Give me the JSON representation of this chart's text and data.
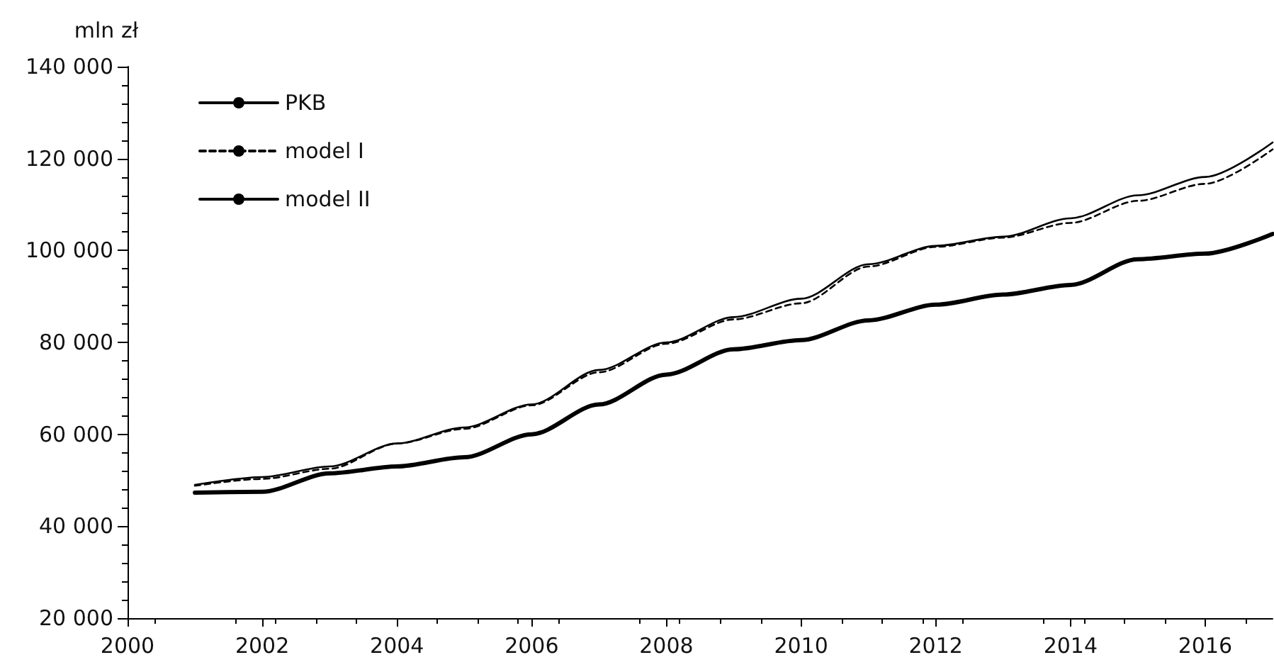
{
  "chart_data": {
    "type": "line",
    "ylabel": "mln zł",
    "x": [
      2001,
      2002,
      2003,
      2004,
      2005,
      2006,
      2007,
      2008,
      2009,
      2010,
      2011,
      2012,
      2013,
      2014,
      2015,
      2016,
      2017
    ],
    "series": [
      {
        "name": "PKB",
        "color": "#000000",
        "line_style": "solid",
        "values": [
          49000,
          50700,
          53000,
          58000,
          61500,
          66500,
          74000,
          80000,
          85500,
          89500,
          97000,
          101000,
          103000,
          107000,
          112000,
          116000,
          123500
        ]
      },
      {
        "name": "model I",
        "color": "#000000",
        "line_style": "dashed",
        "values": [
          48800,
          50300,
          52500,
          58000,
          61200,
          66300,
          73500,
          79700,
          85000,
          88500,
          96500,
          100800,
          102800,
          106000,
          110800,
          114500,
          122000
        ]
      },
      {
        "name": "model II",
        "color": "#000000",
        "line_style": "solid",
        "values": [
          47300,
          47500,
          51500,
          53000,
          55000,
          60000,
          66500,
          73000,
          78500,
          80500,
          84800,
          88200,
          90400,
          92500,
          98100,
          99300,
          103600
        ]
      }
    ],
    "xlim": [
      2000,
      2017
    ],
    "xticks": [
      2000,
      2002,
      2004,
      2006,
      2008,
      2010,
      2012,
      2014,
      2016
    ],
    "ylim": [
      20000,
      140000
    ],
    "yticks": [
      {
        "value": 20000,
        "label": "20 000"
      },
      {
        "value": 40000,
        "label": "40 000"
      },
      {
        "value": 60000,
        "label": "60 000"
      },
      {
        "value": 80000,
        "label": "80 000"
      },
      {
        "value": 100000,
        "label": "100 000"
      },
      {
        "value": 120000,
        "label": "120 000"
      },
      {
        "value": 140000,
        "label": "140 000"
      }
    ],
    "grid": false,
    "legend": "top left",
    "marker": "none"
  }
}
